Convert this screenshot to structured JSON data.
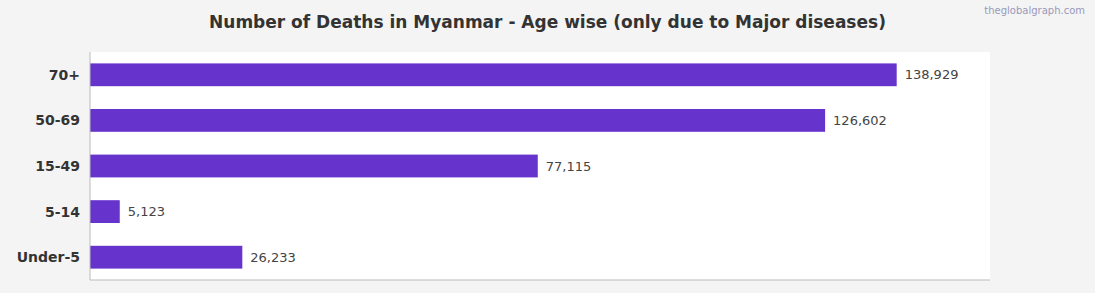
{
  "chart_data": {
    "type": "bar",
    "orientation": "horizontal",
    "title": "Number of Deaths in Myanmar - Age wise (only due to Major diseases)",
    "annotations": [
      "theglobalgraph.com"
    ],
    "categories": [
      "70+",
      "50-69",
      "15-49",
      "5-14",
      "Under-5"
    ],
    "values": [
      138929,
      126602,
      77115,
      5123,
      26233
    ],
    "value_labels": [
      "138,929",
      "126,602",
      "77,115",
      "5,123",
      "26,233"
    ],
    "color": "#6633cc",
    "xlim": [
      0,
      155000
    ],
    "data_labels": true,
    "tick_labels": "y",
    "grid": false
  }
}
